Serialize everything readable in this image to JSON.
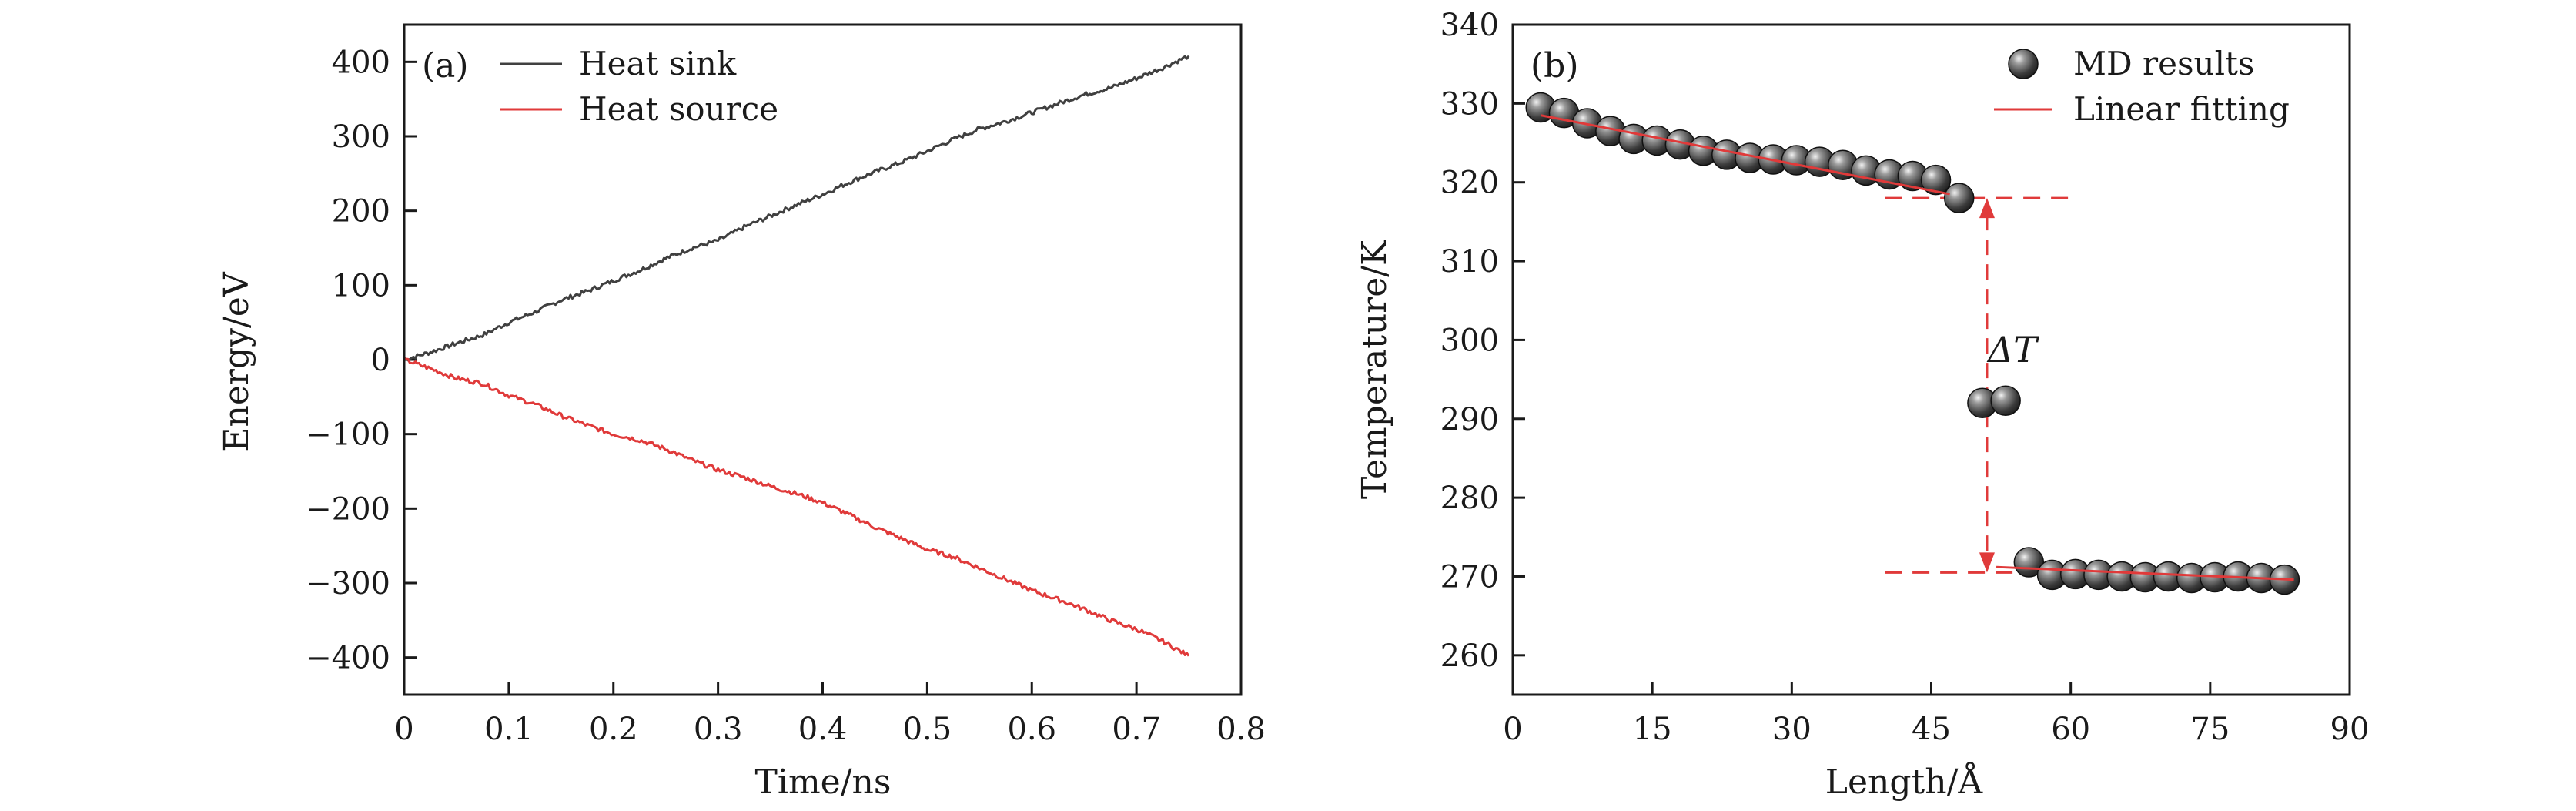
{
  "chart_data": [
    {
      "id": "a",
      "type": "line",
      "panel_label": "(a)",
      "xlabel": "Time/ns",
      "ylabel": "Energy/eV",
      "xlim": [
        0,
        0.8
      ],
      "ylim": [
        -450,
        450
      ],
      "xticks": [
        0,
        0.1,
        0.2,
        0.3,
        0.4,
        0.5,
        0.6,
        0.7,
        0.8
      ],
      "xtick_labels": [
        "0",
        "0.1",
        "0.2",
        "0.3",
        "0.4",
        "0.5",
        "0.6",
        "0.7",
        "0.8"
      ],
      "yticks": [
        -400,
        -300,
        -200,
        -100,
        0,
        100,
        200,
        300,
        400
      ],
      "ytick_labels": [
        "−400",
        "−300",
        "−200",
        "−100",
        "0",
        "100",
        "200",
        "300",
        "400"
      ],
      "legend_position": "top-left",
      "series": [
        {
          "name": "Heat sink",
          "color": "#404040",
          "x": [
            0,
            0.025,
            0.05,
            0.075,
            0.1,
            0.125,
            0.15,
            0.175,
            0.2,
            0.225,
            0.25,
            0.275,
            0.3,
            0.325,
            0.35,
            0.375,
            0.4,
            0.425,
            0.45,
            0.475,
            0.5,
            0.525,
            0.55,
            0.575,
            0.6,
            0.625,
            0.65,
            0.675,
            0.7,
            0.725,
            0.75
          ],
          "values": [
            0,
            10,
            22,
            33,
            50,
            64,
            80,
            92,
            106,
            120,
            136,
            150,
            160,
            178,
            193,
            208,
            222,
            238,
            252,
            265,
            280,
            296,
            310,
            320,
            332,
            344,
            356,
            365,
            378,
            392,
            408
          ]
        },
        {
          "name": "Heat source",
          "color": "#e03a3a",
          "x": [
            0,
            0.025,
            0.05,
            0.075,
            0.1,
            0.125,
            0.15,
            0.175,
            0.2,
            0.225,
            0.25,
            0.275,
            0.3,
            0.325,
            0.35,
            0.375,
            0.4,
            0.425,
            0.45,
            0.475,
            0.5,
            0.525,
            0.55,
            0.575,
            0.6,
            0.625,
            0.65,
            0.675,
            0.7,
            0.725,
            0.75
          ],
          "values": [
            0,
            -12,
            -25,
            -32,
            -48,
            -60,
            -75,
            -88,
            -100,
            -108,
            -120,
            -135,
            -148,
            -158,
            -170,
            -180,
            -192,
            -208,
            -225,
            -240,
            -255,
            -265,
            -280,
            -295,
            -310,
            -322,
            -335,
            -350,
            -362,
            -378,
            -398
          ]
        }
      ]
    },
    {
      "id": "b",
      "type": "scatter",
      "panel_label": "(b)",
      "xlabel": "Length/Å",
      "ylabel": "Temperature/K",
      "xlim": [
        0,
        90
      ],
      "ylim": [
        255,
        340
      ],
      "xticks": [
        0,
        15,
        30,
        45,
        60,
        75,
        90
      ],
      "xtick_labels": [
        "0",
        "15",
        "30",
        "45",
        "60",
        "75",
        "90"
      ],
      "yticks": [
        260,
        270,
        280,
        290,
        300,
        310,
        320,
        330,
        340
      ],
      "ytick_labels": [
        "260",
        "270",
        "280",
        "290",
        "300",
        "310",
        "320",
        "330",
        "340"
      ],
      "legend_position": "top-right",
      "annotation": "ΔT",
      "series": [
        {
          "name": "MD results",
          "marker": "sphere",
          "x": [
            3,
            5.5,
            8,
            10.5,
            13,
            15.5,
            18,
            20.5,
            23,
            25.5,
            28,
            30.5,
            33,
            35.5,
            38,
            40.5,
            43,
            45.5,
            48,
            50.5,
            53,
            55.5,
            58,
            60.5,
            63,
            65.5,
            68,
            70.5,
            73,
            75.5,
            78,
            80.5,
            83
          ],
          "values": [
            329.5,
            328.8,
            327.5,
            326.5,
            325.5,
            325.3,
            324.8,
            324,
            323.5,
            323.1,
            322.9,
            322.8,
            322.6,
            322.2,
            321.5,
            321,
            320.8,
            320.3,
            318,
            292,
            292.3,
            271.8,
            270.2,
            270.3,
            270.2,
            270,
            269.9,
            270,
            269.8,
            269.9,
            270,
            269.8,
            269.6
          ]
        },
        {
          "name": "Linear fitting",
          "color": "#e03a3a",
          "segments": [
            {
              "x": [
                3,
                47
              ],
              "values": [
                328.5,
                318.5
              ]
            },
            {
              "x": [
                52,
                84
              ],
              "values": [
                271.2,
                269.6
              ]
            }
          ]
        }
      ],
      "delta_t_guides": {
        "upper_T": 318,
        "lower_T": 270.5,
        "x_start": 40,
        "x_end": 60,
        "arrow_x": 51
      }
    }
  ]
}
